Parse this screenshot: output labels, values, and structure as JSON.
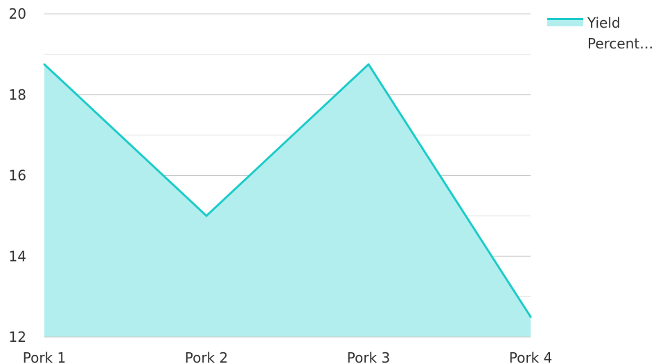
{
  "chart_data": {
    "type": "area",
    "categories": [
      "Pork 1",
      "Pork 2",
      "Pork 3",
      "Pork 4"
    ],
    "series": [
      {
        "name": "Yield Percent…",
        "values": [
          18.75,
          15.0,
          18.75,
          12.5
        ]
      }
    ],
    "ylim": [
      12,
      20
    ],
    "yticks": [
      "12",
      "14",
      "16",
      "18",
      "20"
    ],
    "grid": true,
    "legend_position": "top-right",
    "colors": {
      "line": "#1ccbc9",
      "fill": "#b2eeee",
      "grid_major": "#c8c8c8",
      "grid_minor": "#e6e6e6",
      "baseline": "#c8c8c8"
    }
  }
}
